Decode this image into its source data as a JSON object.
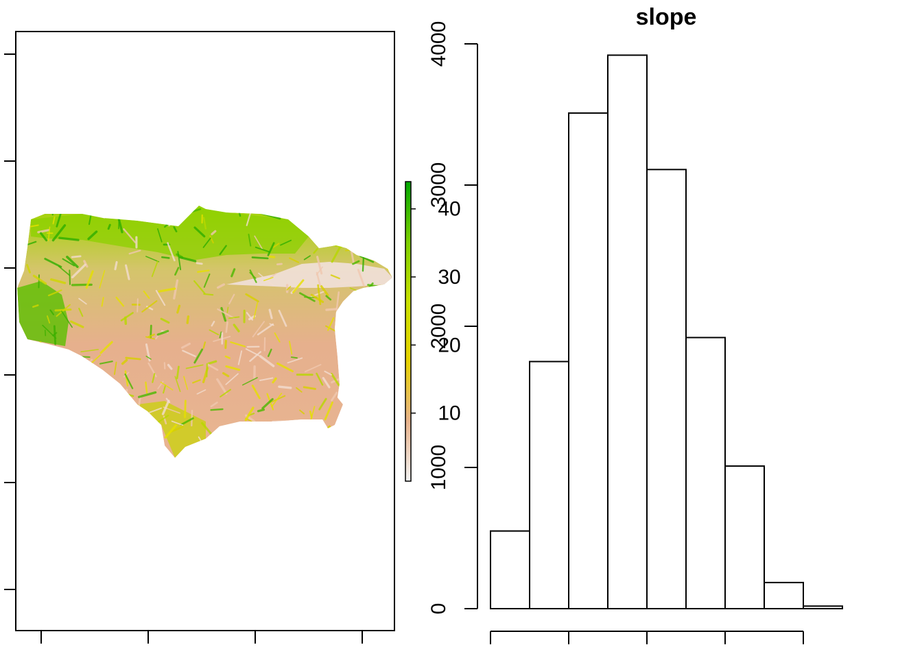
{
  "chart_data": [
    {
      "type": "heatmap",
      "title": "",
      "xlabel": "",
      "ylabel": "",
      "legend": {
        "ticks": [
          10,
          20,
          30,
          40
        ],
        "range": [
          0,
          44
        ],
        "colors": [
          "#f2f2f2",
          "#e8b38c",
          "#e6d200",
          "#c9e000",
          "#7ccf00",
          "#00a600"
        ]
      }
    },
    {
      "type": "bar",
      "title": "slope",
      "xlabel": "",
      "ylabel": "",
      "values": [
        550,
        1750,
        3510,
        3920,
        3110,
        1920,
        1010,
        185,
        18
      ],
      "ylim": [
        0,
        4000
      ],
      "yticks": [
        0,
        1000,
        2000,
        3000,
        4000
      ],
      "xtick_count": 5
    }
  ]
}
